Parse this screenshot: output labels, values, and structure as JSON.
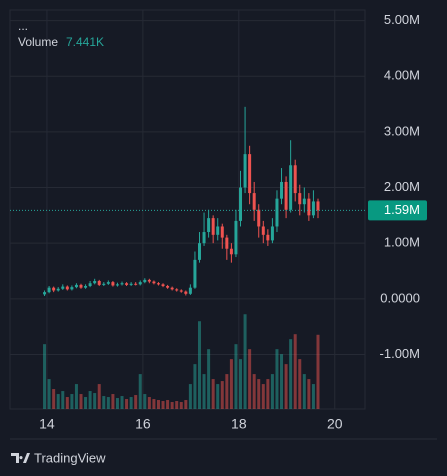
{
  "chart_data": {
    "type": "candlestick",
    "menu": "...",
    "volume_name": "Volume",
    "last_volume": {
      "value": 7441,
      "label": "7.441K"
    },
    "last_price": {
      "value": 1590000,
      "label": "1.59M"
    },
    "x": [
      13.95,
      14.045,
      14.14,
      14.235,
      14.33,
      14.425,
      14.52,
      14.615,
      14.71,
      14.805,
      14.9,
      14.995,
      15.09,
      15.185,
      15.28,
      15.375,
      15.47,
      15.565,
      15.66,
      15.755,
      15.85,
      15.945,
      16.04,
      16.135,
      16.23,
      16.325,
      16.42,
      16.515,
      16.61,
      16.705,
      16.8,
      16.895,
      16.99,
      17.085,
      17.18,
      17.275,
      17.37,
      17.465,
      17.56,
      17.655,
      17.75,
      17.845,
      17.94,
      18.035,
      18.13,
      18.225,
      18.32,
      18.415,
      18.51,
      18.605,
      18.7,
      18.795,
      18.89,
      18.985,
      19.08,
      19.175,
      19.27,
      19.365,
      19.46,
      19.555,
      19.65
    ],
    "open": [
      80000,
      120000,
      200000,
      150000,
      180000,
      220000,
      170000,
      210000,
      250000,
      200000,
      230000,
      280000,
      320000,
      250000,
      270000,
      300000,
      240000,
      260000,
      280000,
      250000,
      270000,
      260000,
      300000,
      340000,
      310000,
      280000,
      260000,
      230000,
      200000,
      170000,
      150000,
      130000,
      90000,
      200000,
      700000,
      1000000,
      1200000,
      1450000,
      1150000,
      1300000,
      1100000,
      900000,
      800000,
      1400000,
      2000000,
      2600000,
      1900000,
      1600000,
      1300000,
      1150000,
      1050000,
      1300000,
      1800000,
      2100000,
      1600000,
      2400000,
      1900000,
      1700000,
      1800000,
      1500000,
      1750000
    ],
    "high": [
      150000,
      230000,
      220000,
      210000,
      260000,
      240000,
      240000,
      280000,
      270000,
      260000,
      320000,
      360000,
      340000,
      300000,
      330000,
      320000,
      290000,
      310000,
      300000,
      300000,
      300000,
      330000,
      370000,
      360000,
      330000,
      300000,
      280000,
      250000,
      220000,
      190000,
      170000,
      150000,
      260000,
      850000,
      1200000,
      1550000,
      1600000,
      1500000,
      1450000,
      1350000,
      1150000,
      1000000,
      1600000,
      2300000,
      3450000,
      2750000,
      2100000,
      1700000,
      1400000,
      1250000,
      1450000,
      1950000,
      2350000,
      2200000,
      2850000,
      2500000,
      2050000,
      2000000,
      1900000,
      1950000,
      1800000
    ],
    "low": [
      50000,
      100000,
      120000,
      130000,
      160000,
      150000,
      150000,
      190000,
      180000,
      180000,
      210000,
      260000,
      230000,
      230000,
      250000,
      220000,
      220000,
      240000,
      230000,
      230000,
      240000,
      240000,
      280000,
      280000,
      260000,
      240000,
      210000,
      180000,
      150000,
      130000,
      110000,
      60000,
      70000,
      180000,
      650000,
      950000,
      1100000,
      1000000,
      1050000,
      900000,
      700000,
      650000,
      750000,
      1300000,
      1900000,
      1700000,
      1400000,
      1100000,
      1000000,
      950000,
      1000000,
      1200000,
      1700000,
      1450000,
      1550000,
      1750000,
      1500000,
      1550000,
      1400000,
      1450000,
      1450000
    ],
    "close": [
      120000,
      200000,
      150000,
      180000,
      220000,
      170000,
      210000,
      250000,
      200000,
      230000,
      280000,
      320000,
      250000,
      270000,
      300000,
      240000,
      260000,
      280000,
      250000,
      270000,
      260000,
      300000,
      340000,
      310000,
      280000,
      260000,
      230000,
      200000,
      170000,
      150000,
      130000,
      90000,
      200000,
      700000,
      1000000,
      1200000,
      1450000,
      1150000,
      1300000,
      1100000,
      900000,
      800000,
      1400000,
      2000000,
      2600000,
      1900000,
      1600000,
      1300000,
      1150000,
      1050000,
      1300000,
      1800000,
      2100000,
      1600000,
      2400000,
      1900000,
      1700000,
      1800000,
      1500000,
      1750000,
      1590000
    ],
    "volume": [
      6500,
      3000,
      2000,
      1500,
      1800,
      1200,
      1500,
      2500,
      1500,
      1200,
      1800,
      1600,
      2500,
      1300,
      1200,
      1500,
      1100,
      1300,
      1000,
      1200,
      1400,
      3500,
      1500,
      1200,
      1000,
      900,
      800,
      900,
      700,
      800,
      700,
      900,
      2500,
      4500,
      8800,
      3500,
      6000,
      3000,
      2500,
      2800,
      3500,
      5000,
      6500,
      5000,
      9500,
      6000,
      3500,
      3000,
      2500,
      3000,
      3500,
      6000,
      5500,
      4500,
      7000,
      7500,
      5000,
      3500,
      3000,
      2500,
      7441
    ],
    "up_color": "#26a69a",
    "down_color": "#ef5350",
    "xlim": [
      13.23,
      20.63
    ],
    "xticks": [
      14,
      16,
      18,
      20
    ],
    "ylim": [
      -1980000,
      5190000
    ],
    "yticks": [
      {
        "value": -1000000,
        "label": "-1.00M"
      },
      {
        "value": 0,
        "label": "0.0000"
      },
      {
        "value": 1000000,
        "label": "1.00M"
      },
      {
        "value": 2000000,
        "label": "2.00M"
      },
      {
        "value": 3000000,
        "label": "3.00M"
      },
      {
        "value": 4000000,
        "label": "4.00M"
      },
      {
        "value": 5000000,
        "label": "5.00M"
      }
    ],
    "y2lim": [
      0,
      40000
    ],
    "grid": true
  },
  "brand": "TradingView"
}
